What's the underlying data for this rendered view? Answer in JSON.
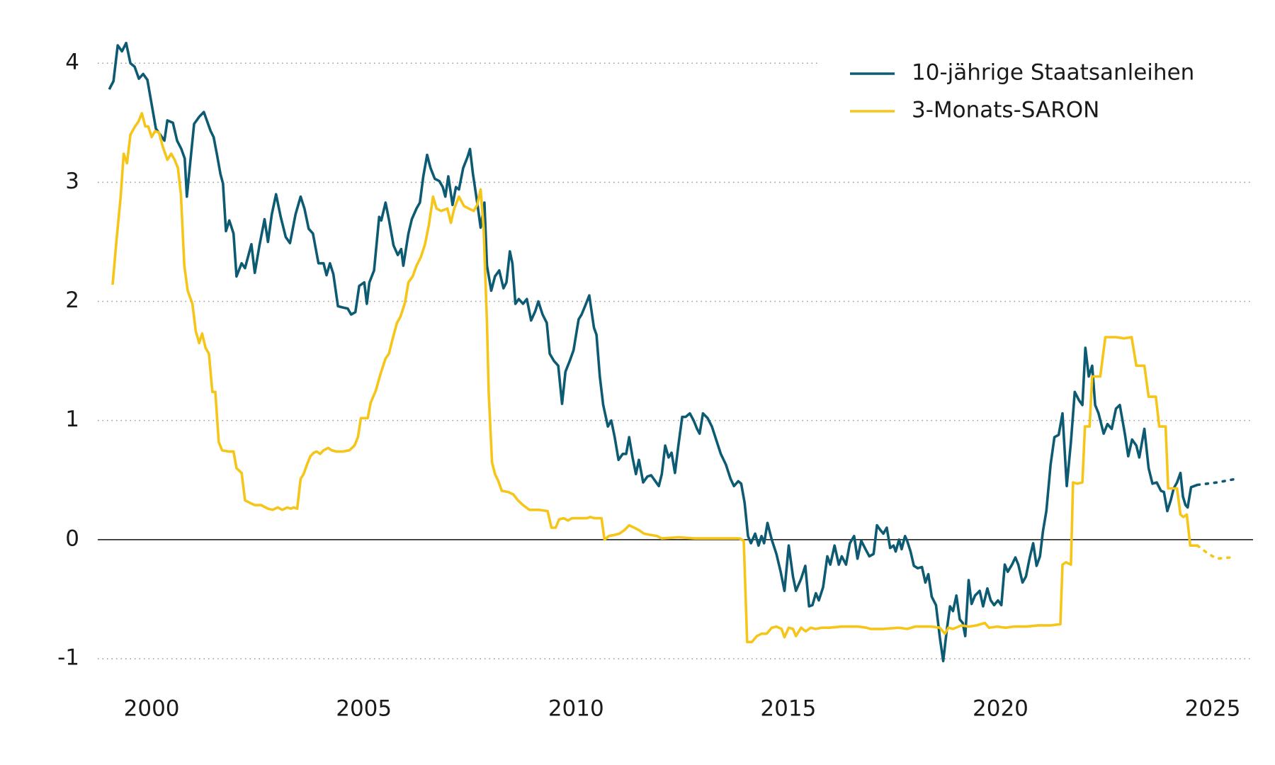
{
  "chart_data": {
    "type": "line",
    "xlim": [
      1998.73,
      2025.95
    ],
    "xticks": [
      2000,
      2005,
      2010,
      2015,
      2020,
      2025
    ],
    "ylim": [
      -1.25,
      4.4
    ],
    "yticks": [
      -1,
      0,
      1,
      2,
      3,
      4
    ],
    "grid": true,
    "legend": "top-right",
    "series": [
      {
        "name": "10-jährige Staatsanleihen",
        "color": "#0d5a73",
        "x": [
          1999.0,
          1999.1,
          1999.2,
          1999.3,
          1999.4,
          1999.5,
          1999.6,
          1999.7,
          1999.8,
          1999.9,
          2000.1,
          2000.3,
          2000.37,
          2000.5,
          2000.6,
          2000.7,
          2000.78,
          2000.83,
          2001.0,
          2001.12,
          2001.23,
          2001.39,
          2001.46,
          2001.54,
          2001.62,
          2001.68,
          2001.75,
          2001.83,
          2001.93,
          2002.0,
          2002.12,
          2002.2,
          2002.35,
          2002.43,
          2002.54,
          2002.66,
          2002.74,
          2002.83,
          2002.93,
          2003.04,
          2003.16,
          2003.26,
          2003.39,
          2003.51,
          2003.6,
          2003.7,
          2003.8,
          2003.93,
          2004.05,
          2004.12,
          2004.2,
          2004.28,
          2004.39,
          2004.49,
          2004.62,
          2004.7,
          2004.8,
          2004.89,
          2005.01,
          2005.07,
          2005.13,
          2005.24,
          2005.36,
          2005.41,
          2005.51,
          2005.59,
          2005.7,
          2005.8,
          2005.88,
          2005.93,
          2006.05,
          2006.13,
          2006.24,
          2006.32,
          2006.4,
          2006.49,
          2006.57,
          2006.67,
          2006.78,
          2006.86,
          2006.92,
          2006.99,
          2007.09,
          2007.17,
          2007.24,
          2007.34,
          2007.44,
          2007.5,
          2007.57,
          2007.67,
          2007.75,
          2007.84,
          2007.9,
          2008.0,
          2008.09,
          2008.19,
          2008.29,
          2008.36,
          2008.44,
          2008.5,
          2008.57,
          2008.65,
          2008.75,
          2008.84,
          2008.94,
          2009.04,
          2009.11,
          2009.21,
          2009.31,
          2009.38,
          2009.48,
          2009.58,
          2009.67,
          2009.75,
          2009.85,
          2009.94,
          2010.06,
          2010.13,
          2010.21,
          2010.31,
          2010.42,
          2010.48,
          2010.56,
          2010.64,
          2010.75,
          2010.83,
          2010.91,
          2011.0,
          2011.1,
          2011.18,
          2011.25,
          2011.33,
          2011.41,
          2011.48,
          2011.58,
          2011.68,
          2011.77,
          2011.87,
          2011.95,
          2012.02,
          2012.1,
          2012.18,
          2012.25,
          2012.33,
          2012.41,
          2012.5,
          2012.58,
          2012.68,
          2012.77,
          2012.85,
          2012.91,
          2012.99,
          2013.1,
          2013.2,
          2013.3,
          2013.41,
          2013.53,
          2013.64,
          2013.72,
          2013.82,
          2013.89,
          2013.97,
          2014.05,
          2014.12,
          2014.22,
          2014.3,
          2014.37,
          2014.43,
          2014.51,
          2014.61,
          2014.72,
          2014.82,
          2014.91,
          2015.01,
          2015.11,
          2015.18,
          2015.3,
          2015.4,
          2015.49,
          2015.57,
          2015.65,
          2015.72,
          2015.82,
          2015.92,
          2015.99,
          2016.09,
          2016.19,
          2016.26,
          2016.36,
          2016.45,
          2016.55,
          2016.63,
          2016.72,
          2016.82,
          2016.91,
          2017.01,
          2017.09,
          2017.17,
          2017.24,
          2017.32,
          2017.4,
          2017.48,
          2017.53,
          2017.61,
          2017.67,
          2017.75,
          2017.8,
          2017.88,
          2017.96,
          2018.05,
          2018.15,
          2018.23,
          2018.3,
          2018.38,
          2018.48,
          2018.57,
          2018.65,
          2018.73,
          2018.81,
          2018.88,
          2018.96,
          2019.04,
          2019.11,
          2019.17,
          2019.25,
          2019.32,
          2019.4,
          2019.51,
          2019.59,
          2019.69,
          2019.77,
          2019.85,
          2019.94,
          2020.02,
          2020.1,
          2020.17,
          2020.27,
          2020.35,
          2020.42,
          2020.52,
          2020.6,
          2020.69,
          2020.77,
          2020.85,
          2020.93,
          2021.0,
          2021.08,
          2021.18,
          2021.27,
          2021.37,
          2021.46,
          2021.56,
          2021.66,
          2021.75,
          2021.85,
          2021.93,
          2022.0,
          2022.08,
          2022.16,
          2022.23,
          2022.31,
          2022.43,
          2022.52,
          2022.62,
          2022.72,
          2022.81,
          2022.93,
          2023.01,
          2023.1,
          2023.2,
          2023.27,
          2023.39,
          2023.49,
          2023.58,
          2023.68,
          2023.78,
          2023.85,
          2023.93,
          2024.01,
          2024.08,
          2024.16,
          2024.24,
          2024.3,
          2024.36,
          2024.41,
          2024.49,
          2024.64
        ],
        "values": [
          3.78,
          3.85,
          4.15,
          4.1,
          4.17,
          4.0,
          3.97,
          3.87,
          3.91,
          3.86,
          3.45,
          3.35,
          3.52,
          3.5,
          3.35,
          3.28,
          3.2,
          2.88,
          3.49,
          3.55,
          3.59,
          3.43,
          3.38,
          3.23,
          3.07,
          2.99,
          2.59,
          2.68,
          2.57,
          2.21,
          2.32,
          2.28,
          2.48,
          2.24,
          2.47,
          2.69,
          2.5,
          2.73,
          2.9,
          2.71,
          2.54,
          2.49,
          2.73,
          2.88,
          2.78,
          2.61,
          2.57,
          2.32,
          2.32,
          2.22,
          2.32,
          2.23,
          1.96,
          1.95,
          1.94,
          1.89,
          1.91,
          2.13,
          2.16,
          1.98,
          2.16,
          2.26,
          2.71,
          2.68,
          2.83,
          2.69,
          2.47,
          2.39,
          2.44,
          2.3,
          2.57,
          2.69,
          2.78,
          2.83,
          3.05,
          3.23,
          3.12,
          3.03,
          3.01,
          2.96,
          2.88,
          3.05,
          2.81,
          2.96,
          2.94,
          3.12,
          3.21,
          3.28,
          3.07,
          2.83,
          2.62,
          2.83,
          2.3,
          2.09,
          2.21,
          2.26,
          2.11,
          2.16,
          2.42,
          2.32,
          1.98,
          2.02,
          1.98,
          2.02,
          1.84,
          1.92,
          2.0,
          1.89,
          1.82,
          1.56,
          1.5,
          1.46,
          1.14,
          1.41,
          1.5,
          1.59,
          1.85,
          1.89,
          1.96,
          2.05,
          1.78,
          1.72,
          1.37,
          1.13,
          0.95,
          1.0,
          0.86,
          0.67,
          0.72,
          0.72,
          0.86,
          0.69,
          0.55,
          0.67,
          0.48,
          0.53,
          0.54,
          0.49,
          0.45,
          0.55,
          0.79,
          0.69,
          0.73,
          0.56,
          0.79,
          1.03,
          1.03,
          1.06,
          1.0,
          0.93,
          0.89,
          1.06,
          1.02,
          0.95,
          0.84,
          0.72,
          0.63,
          0.51,
          0.45,
          0.49,
          0.47,
          0.31,
          0.03,
          -0.03,
          0.05,
          -0.05,
          0.03,
          -0.03,
          0.14,
          0.0,
          -0.12,
          -0.27,
          -0.43,
          -0.05,
          -0.31,
          -0.43,
          -0.33,
          -0.22,
          -0.56,
          -0.55,
          -0.45,
          -0.51,
          -0.4,
          -0.14,
          -0.21,
          -0.05,
          -0.21,
          -0.14,
          -0.21,
          -0.03,
          0.03,
          -0.16,
          -0.01,
          -0.08,
          -0.14,
          -0.12,
          0.12,
          0.08,
          0.05,
          0.1,
          -0.07,
          -0.05,
          -0.1,
          0.0,
          -0.08,
          0.03,
          -0.01,
          -0.1,
          -0.22,
          -0.24,
          -0.23,
          -0.36,
          -0.29,
          -0.48,
          -0.55,
          -0.82,
          -1.02,
          -0.77,
          -0.56,
          -0.6,
          -0.47,
          -0.67,
          -0.7,
          -0.81,
          -0.34,
          -0.54,
          -0.47,
          -0.43,
          -0.56,
          -0.41,
          -0.51,
          -0.55,
          -0.51,
          -0.55,
          -0.21,
          -0.27,
          -0.21,
          -0.15,
          -0.21,
          -0.36,
          -0.31,
          -0.15,
          -0.03,
          -0.22,
          -0.14,
          0.07,
          0.24,
          0.63,
          0.86,
          0.88,
          1.06,
          0.45,
          0.82,
          1.24,
          1.17,
          1.13,
          1.61,
          1.37,
          1.46,
          1.13,
          1.06,
          0.89,
          0.97,
          0.93,
          1.1,
          1.13,
          0.89,
          0.7,
          0.84,
          0.79,
          0.69,
          0.93,
          0.6,
          0.47,
          0.48,
          0.41,
          0.4,
          0.24,
          0.33,
          0.43,
          0.48,
          0.56,
          0.36,
          0.29,
          0.27,
          0.44,
          0.46
        ]
      },
      {
        "name": "3-Monats-SARON",
        "color": "#f5c518",
        "x": [
          1999.08,
          1999.17,
          1999.27,
          1999.34,
          1999.42,
          1999.5,
          1999.61,
          1999.69,
          1999.77,
          1999.85,
          1999.92,
          2000.0,
          2000.08,
          2000.17,
          2000.27,
          2000.37,
          2000.46,
          2000.54,
          2000.62,
          2000.69,
          2000.77,
          2000.85,
          2000.96,
          2001.04,
          2001.12,
          2001.19,
          2001.27,
          2001.35,
          2001.43,
          2001.5,
          2001.58,
          2001.66,
          2001.81,
          2001.93,
          2002.0,
          2002.12,
          2002.2,
          2002.31,
          2002.43,
          2002.58,
          2002.74,
          2002.85,
          2002.97,
          2003.08,
          2003.2,
          2003.28,
          2003.35,
          2003.43,
          2003.51,
          2003.58,
          2003.66,
          2003.74,
          2003.82,
          2003.89,
          2003.97,
          2004.05,
          2004.16,
          2004.24,
          2004.35,
          2004.51,
          2004.66,
          2004.78,
          2004.86,
          2004.93,
          2005.09,
          2005.16,
          2005.28,
          2005.39,
          2005.51,
          2005.59,
          2005.66,
          2005.78,
          2005.86,
          2005.97,
          2006.05,
          2006.15,
          2006.24,
          2006.34,
          2006.44,
          2006.53,
          2006.63,
          2006.71,
          2006.82,
          2006.97,
          2007.05,
          2007.13,
          2007.24,
          2007.36,
          2007.47,
          2007.59,
          2007.67,
          2007.75,
          2007.82,
          2007.9,
          2007.94,
          2008.02,
          2008.09,
          2008.17,
          2008.25,
          2008.4,
          2008.52,
          2008.63,
          2008.75,
          2008.9,
          2009.13,
          2009.33,
          2009.42,
          2009.52,
          2009.6,
          2009.71,
          2009.81,
          2009.9,
          2010.1,
          2010.25,
          2010.33,
          2010.44,
          2010.6,
          2010.67,
          2010.77,
          2010.91,
          2011.02,
          2011.14,
          2011.25,
          2011.37,
          2011.48,
          2011.6,
          2011.75,
          2011.91,
          2012.02,
          2012.41,
          2012.79,
          2013.18,
          2013.56,
          2013.85,
          2013.95,
          2014.03,
          2014.14,
          2014.26,
          2014.37,
          2014.49,
          2014.61,
          2014.72,
          2014.84,
          2014.91,
          2015.01,
          2015.11,
          2015.18,
          2015.3,
          2015.41,
          2015.53,
          2015.65,
          2015.78,
          2015.97,
          2016.26,
          2016.65,
          2016.84,
          2016.94,
          2017.22,
          2017.61,
          2017.8,
          2017.99,
          2018.38,
          2018.57,
          2018.69,
          2018.77,
          2018.88,
          2019.08,
          2019.25,
          2019.44,
          2019.63,
          2019.73,
          2019.92,
          2020.12,
          2020.31,
          2020.6,
          2020.89,
          2021.18,
          2021.41,
          2021.46,
          2021.54,
          2021.66,
          2021.71,
          2021.81,
          2021.93,
          2021.99,
          2022.1,
          2022.16,
          2022.35,
          2022.47,
          2022.72,
          2022.91,
          2023.09,
          2023.2,
          2023.39,
          2023.49,
          2023.66,
          2023.74,
          2023.89,
          2023.95,
          2024.16,
          2024.24,
          2024.31,
          2024.39,
          2024.47,
          2024.64
        ],
        "values": [
          2.14,
          2.51,
          2.88,
          3.24,
          3.16,
          3.4,
          3.47,
          3.51,
          3.58,
          3.47,
          3.47,
          3.38,
          3.43,
          3.42,
          3.29,
          3.19,
          3.24,
          3.19,
          3.12,
          2.9,
          2.3,
          2.09,
          1.98,
          1.75,
          1.65,
          1.73,
          1.61,
          1.56,
          1.24,
          1.24,
          0.82,
          0.75,
          0.74,
          0.74,
          0.6,
          0.56,
          0.33,
          0.31,
          0.29,
          0.29,
          0.26,
          0.25,
          0.27,
          0.25,
          0.27,
          0.26,
          0.27,
          0.26,
          0.51,
          0.55,
          0.63,
          0.7,
          0.73,
          0.74,
          0.72,
          0.75,
          0.77,
          0.75,
          0.74,
          0.74,
          0.75,
          0.79,
          0.86,
          1.02,
          1.02,
          1.15,
          1.25,
          1.39,
          1.52,
          1.56,
          1.66,
          1.82,
          1.87,
          1.99,
          2.16,
          2.21,
          2.3,
          2.37,
          2.48,
          2.64,
          2.88,
          2.78,
          2.76,
          2.78,
          2.66,
          2.78,
          2.88,
          2.8,
          2.78,
          2.76,
          2.81,
          2.94,
          2.62,
          1.82,
          1.24,
          0.65,
          0.55,
          0.49,
          0.41,
          0.4,
          0.38,
          0.33,
          0.29,
          0.25,
          0.25,
          0.24,
          0.1,
          0.1,
          0.17,
          0.18,
          0.16,
          0.18,
          0.18,
          0.18,
          0.19,
          0.18,
          0.18,
          0.0,
          0.03,
          0.04,
          0.05,
          0.08,
          0.12,
          0.1,
          0.08,
          0.05,
          0.04,
          0.03,
          0.01,
          0.02,
          0.01,
          0.01,
          0.01,
          0.01,
          -0.01,
          -0.86,
          -0.86,
          -0.81,
          -0.79,
          -0.79,
          -0.74,
          -0.73,
          -0.75,
          -0.82,
          -0.74,
          -0.75,
          -0.81,
          -0.74,
          -0.77,
          -0.74,
          -0.75,
          -0.74,
          -0.74,
          -0.73,
          -0.73,
          -0.74,
          -0.75,
          -0.75,
          -0.74,
          -0.75,
          -0.73,
          -0.73,
          -0.74,
          -0.79,
          -0.74,
          -0.75,
          -0.72,
          -0.73,
          -0.72,
          -0.7,
          -0.74,
          -0.73,
          -0.74,
          -0.73,
          -0.73,
          -0.72,
          -0.72,
          -0.71,
          -0.21,
          -0.19,
          -0.21,
          0.48,
          0.47,
          0.48,
          0.95,
          0.95,
          1.37,
          1.37,
          1.7,
          1.7,
          1.69,
          1.7,
          1.46,
          1.46,
          1.2,
          1.2,
          0.95,
          0.95,
          0.43,
          0.43,
          0.21,
          0.19,
          0.21,
          -0.05,
          -0.05
        ]
      },
      {
        "color": "#0d5a73",
        "dashed": true,
        "x": [
          2024.64,
          2025.1,
          2025.55
        ],
        "values": [
          0.46,
          0.48,
          0.51
        ]
      },
      {
        "color": "#f5c518",
        "dashed": true,
        "x": [
          2024.64,
          2024.9,
          2025.1,
          2025.42
        ],
        "values": [
          -0.05,
          -0.12,
          -0.16,
          -0.15
        ]
      }
    ]
  }
}
